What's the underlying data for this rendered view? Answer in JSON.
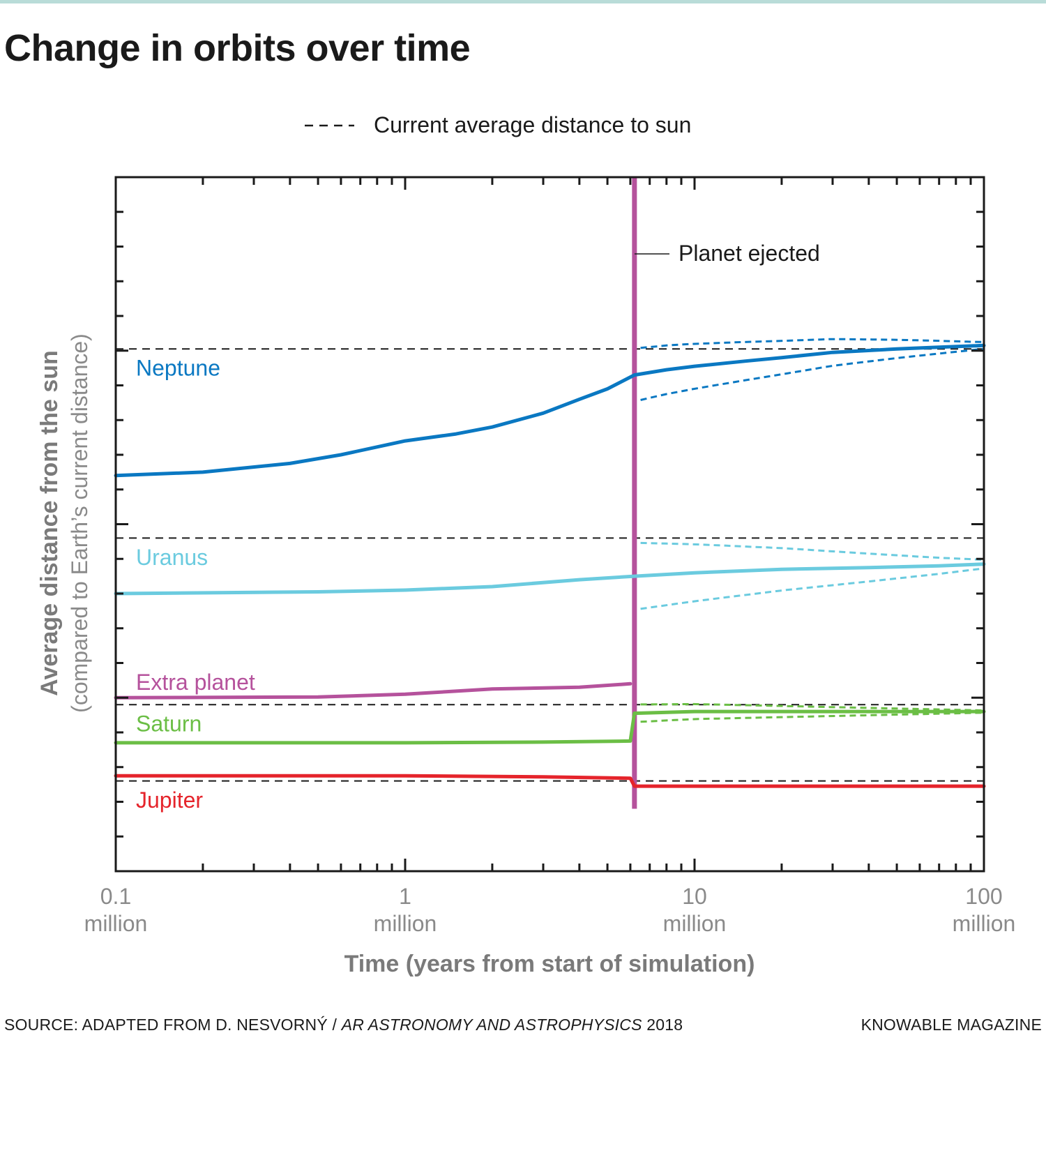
{
  "title": "Change in orbits over time",
  "source": {
    "prefix": "SOURCE: ADAPTED FROM D. NESVORNÝ /",
    "publication": "AR ASTRONOMY AND ASTROPHYSICS",
    "year": "2018"
  },
  "brand": "KNOWABLE MAGAZINE",
  "chart_data": {
    "type": "line",
    "title": "Change in orbits over time",
    "xlabel": "Time (years from start of simulation)",
    "ylabel": "Average distance from the sun",
    "ylabel_sub": "(compared to Earth’s current distance)",
    "x_scale": "log",
    "xlim": [
      0.1,
      100
    ],
    "ylim": [
      0,
      20
    ],
    "x_unit": "million years",
    "x_ticks": [
      {
        "value": 0.1,
        "label": "0.1",
        "sub": "million"
      },
      {
        "value": 1,
        "label": "1",
        "sub": "million"
      },
      {
        "value": 10,
        "label": "10",
        "sub": "million"
      },
      {
        "value": 100,
        "label": "100",
        "sub": "million"
      }
    ],
    "legend": {
      "label": "Current average distance to sun",
      "style": "dashed",
      "placement": "top-center"
    },
    "reference_lines": [
      {
        "name": "Neptune",
        "y": 15.05
      },
      {
        "name": "Uranus",
        "y": 9.6
      },
      {
        "name": "Saturn",
        "y": 4.8
      },
      {
        "name": "Jupiter",
        "y": 2.6
      }
    ],
    "annotations": [
      {
        "text": "Planet ejected",
        "x": 6.2
      }
    ],
    "ejection_time": 6.2,
    "series": [
      {
        "name": "Neptune",
        "color": "#0a78c2",
        "label_color": "#0a78c2",
        "x": [
          0.1,
          0.2,
          0.4,
          0.6,
          1,
          1.5,
          2,
          3,
          4,
          5,
          6.2,
          8,
          10,
          15,
          20,
          30,
          50,
          70,
          100
        ],
        "y": [
          11.4,
          11.5,
          11.75,
          12.0,
          12.4,
          12.6,
          12.8,
          13.2,
          13.6,
          13.9,
          14.3,
          14.45,
          14.55,
          14.7,
          14.8,
          14.95,
          15.05,
          15.1,
          15.15
        ]
      },
      {
        "name": "Uranus",
        "color": "#6bcbdf",
        "label_color": "#6bcbdf",
        "x": [
          0.1,
          0.5,
          1,
          2,
          4,
          6.2,
          10,
          20,
          40,
          70,
          100
        ],
        "y": [
          8.0,
          8.05,
          8.1,
          8.2,
          8.4,
          8.5,
          8.6,
          8.7,
          8.75,
          8.8,
          8.85
        ]
      },
      {
        "name": "Extra planet",
        "color": "#b5529c",
        "label_color": "#b5529c",
        "x": [
          0.1,
          0.5,
          1,
          2,
          4,
          6.0
        ],
        "y": [
          5.0,
          5.02,
          5.1,
          5.25,
          5.3,
          5.4
        ]
      },
      {
        "name": "Saturn",
        "color": "#6bbe45",
        "label_color": "#6bbe45",
        "x": [
          0.1,
          0.5,
          1,
          3,
          6.0,
          6.2,
          10,
          30,
          100
        ],
        "y": [
          3.7,
          3.7,
          3.7,
          3.72,
          3.75,
          4.55,
          4.6,
          4.6,
          4.6
        ]
      },
      {
        "name": "Jupiter",
        "color": "#e5242b",
        "label_color": "#e5242b",
        "x": [
          0.1,
          0.5,
          1,
          3,
          6.0,
          6.2,
          10,
          30,
          100
        ],
        "y": [
          2.75,
          2.75,
          2.75,
          2.72,
          2.68,
          2.45,
          2.45,
          2.45,
          2.45
        ]
      }
    ]
  }
}
